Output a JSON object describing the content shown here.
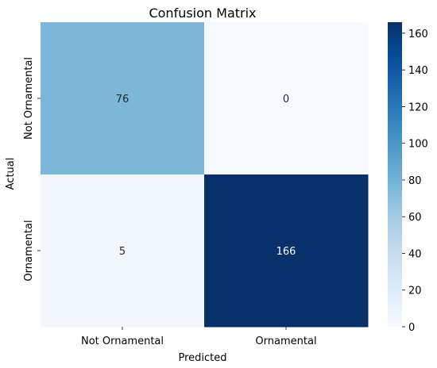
{
  "chart_data": {
    "type": "heatmap",
    "title": "Confusion Matrix",
    "xlabel": "Predicted",
    "ylabel": "Actual",
    "x_categories": [
      "Not Ornamental",
      "Ornamental"
    ],
    "y_categories": [
      "Not Ornamental",
      "Ornamental"
    ],
    "values": [
      [
        76,
        0
      ],
      [
        5,
        166
      ]
    ],
    "colormap": "Blues",
    "vmin": 0,
    "vmax": 166,
    "colorbar_ticks": [
      0,
      20,
      40,
      60,
      80,
      100,
      120,
      140,
      160
    ],
    "colorbar_labels": [
      "0",
      "20",
      "40",
      "60",
      "80",
      "100",
      "120",
      "140",
      "160"
    ],
    "grid": false,
    "legend": "colorbar-right"
  }
}
